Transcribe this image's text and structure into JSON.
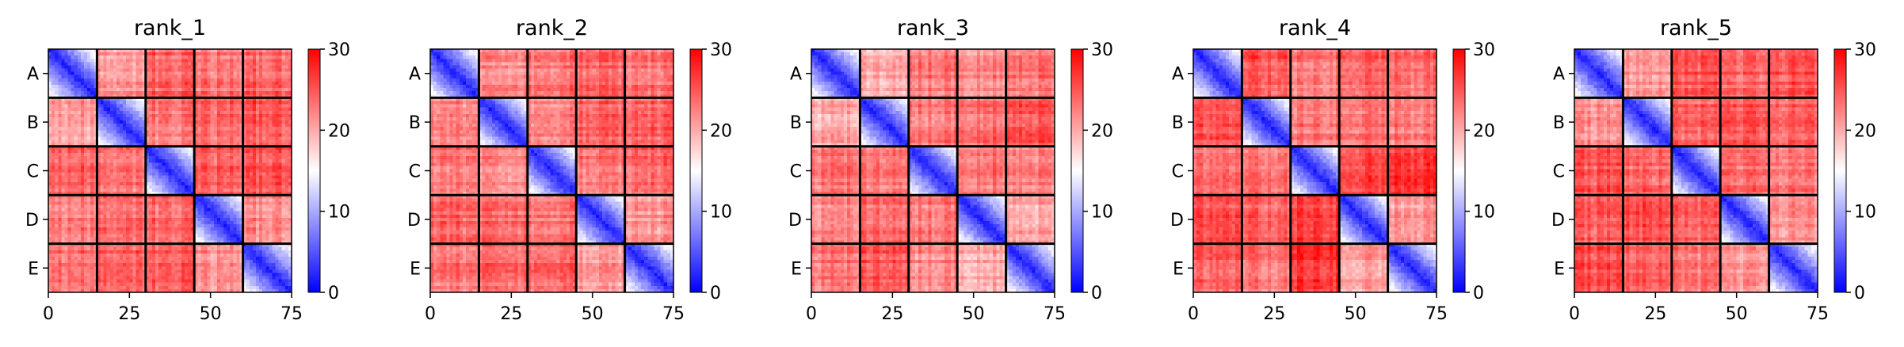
{
  "chart_data": {
    "type": "heatmap",
    "colormap": [
      "#0000ff",
      "#ffffff",
      "#ff0000"
    ],
    "color_range": [
      0,
      30
    ],
    "colorbar_ticks": [
      0,
      10,
      20,
      30
    ],
    "x_ticks": [
      0,
      25,
      50,
      75
    ],
    "x_range": [
      0,
      75
    ],
    "row_labels": [
      "A",
      "B",
      "C",
      "D",
      "E"
    ],
    "block_size": 15,
    "panels": [
      {
        "title": "rank_1",
        "diagonal_block_range": [
          2,
          16
        ],
        "off_diagonal_block_means": [
          [
            null,
            21,
            24,
            23,
            24
          ],
          [
            21,
            null,
            23,
            24,
            25
          ],
          [
            24,
            23,
            null,
            24,
            25
          ],
          [
            23,
            24,
            24,
            null,
            22
          ],
          [
            24,
            25,
            25,
            22,
            null
          ]
        ]
      },
      {
        "title": "rank_2",
        "diagonal_block_range": [
          2,
          16
        ],
        "off_diagonal_block_means": [
          [
            null,
            22,
            23,
            24,
            23
          ],
          [
            22,
            null,
            22,
            24,
            24
          ],
          [
            23,
            22,
            null,
            23,
            24
          ],
          [
            24,
            24,
            23,
            null,
            21
          ],
          [
            23,
            24,
            24,
            21,
            null
          ]
        ]
      },
      {
        "title": "rank_3",
        "diagonal_block_range": [
          2,
          16
        ],
        "off_diagonal_block_means": [
          [
            null,
            20,
            23,
            22,
            23
          ],
          [
            20,
            null,
            23,
            24,
            25
          ],
          [
            23,
            23,
            null,
            23,
            22
          ],
          [
            22,
            24,
            23,
            null,
            20
          ],
          [
            23,
            25,
            22,
            20,
            null
          ]
        ]
      },
      {
        "title": "rank_4",
        "diagonal_block_range": [
          2,
          16
        ],
        "off_diagonal_block_means": [
          [
            null,
            25,
            23,
            25,
            24
          ],
          [
            25,
            null,
            23,
            24,
            23
          ],
          [
            23,
            23,
            null,
            26,
            27
          ],
          [
            25,
            24,
            26,
            null,
            21
          ],
          [
            24,
            23,
            27,
            21,
            null
          ]
        ]
      },
      {
        "title": "rank_5",
        "diagonal_block_range": [
          2,
          16
        ],
        "off_diagonal_block_means": [
          [
            null,
            21,
            25,
            24,
            25
          ],
          [
            21,
            null,
            24,
            25,
            24
          ],
          [
            25,
            24,
            null,
            24,
            23
          ],
          [
            24,
            25,
            24,
            null,
            21
          ],
          [
            25,
            24,
            23,
            21,
            null
          ]
        ]
      }
    ]
  }
}
